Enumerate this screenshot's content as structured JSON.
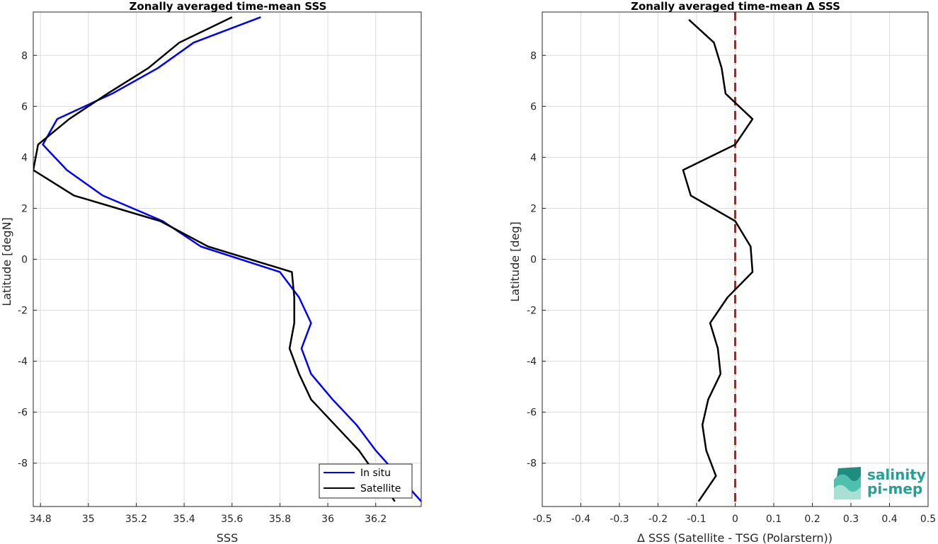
{
  "chart_data": [
    {
      "type": "line",
      "title": "Zonally averaged time-mean SSS",
      "xlabel": "SSS",
      "ylabel": "Latitude [degN]",
      "xlim": [
        34.77,
        36.39
      ],
      "ylim": [
        -9.7,
        9.7
      ],
      "xticks": [
        34.8,
        35,
        35.2,
        35.4,
        35.6,
        35.8,
        36,
        36.2
      ],
      "xtick_labels": [
        "34.8",
        "35",
        "35.2",
        "35.4",
        "35.6",
        "35.8",
        "36",
        "36.2"
      ],
      "yticks": [
        8,
        6,
        4,
        2,
        0,
        -2,
        -4,
        -6,
        -8
      ],
      "ytick_labels": [
        "8",
        "6",
        "4",
        "2",
        "0",
        "-2",
        "-4",
        "-6",
        "-8"
      ],
      "grid": true,
      "legend": "bottom-right",
      "series": [
        {
          "name": "In situ",
          "color": "#0000ff",
          "x": [
            35.72,
            35.44,
            35.29,
            35.1,
            34.87,
            34.81,
            34.91,
            35.06,
            35.31,
            35.47,
            35.8,
            35.88,
            35.93,
            35.89,
            35.93,
            36.02,
            36.12,
            36.2,
            36.39
          ],
          "y": [
            9.5,
            8.5,
            7.5,
            6.5,
            5.5,
            4.5,
            3.5,
            2.5,
            1.5,
            0.5,
            -0.5,
            -1.5,
            -2.5,
            -3.5,
            -4.5,
            -5.5,
            -6.5,
            -7.5,
            -9.5
          ]
        },
        {
          "name": "Satellite",
          "color": "#000000",
          "x": [
            35.6,
            35.38,
            35.25,
            35.08,
            34.92,
            34.79,
            34.77,
            34.94,
            35.3,
            35.5,
            35.85,
            35.86,
            35.86,
            35.84,
            35.88,
            35.93,
            36.03,
            36.13,
            36.28
          ],
          "y": [
            9.5,
            8.5,
            7.5,
            6.5,
            5.5,
            4.5,
            3.5,
            2.5,
            1.5,
            0.5,
            -0.5,
            -1.5,
            -2.5,
            -3.5,
            -4.5,
            -5.5,
            -6.5,
            -7.5,
            -9.5
          ]
        }
      ]
    },
    {
      "type": "line",
      "title": "Zonally averaged time-mean Δ SSS",
      "xlabel": "Δ SSS (Satellite - TSG (Polarstern))",
      "ylabel": "Latitude [deg]",
      "xlim": [
        -0.5,
        0.5
      ],
      "ylim": [
        -9.7,
        9.7
      ],
      "xticks": [
        -0.5,
        -0.4,
        -0.3,
        -0.2,
        -0.1,
        0,
        0.1,
        0.2,
        0.3,
        0.4,
        0.5
      ],
      "xtick_labels": [
        "-0.5",
        "-0.4",
        "-0.3",
        "-0.2",
        "-0.1",
        "0",
        "0.1",
        "0.2",
        "0.3",
        "0.4",
        "0.5"
      ],
      "yticks": [
        8,
        6,
        4,
        2,
        0,
        -2,
        -4,
        -6,
        -8
      ],
      "ytick_labels": [
        "8",
        "6",
        "4",
        "2",
        "0",
        "-2",
        "-4",
        "-6",
        "-8"
      ],
      "grid": true,
      "reference_line": {
        "x": 0,
        "color": "#ff0000",
        "style": "dashed"
      },
      "series": [
        {
          "color": "#000000",
          "x": [
            -0.12,
            -0.055,
            -0.035,
            -0.025,
            0.045,
            0.0,
            -0.135,
            -0.115,
            0.0,
            0.04,
            0.045,
            -0.02,
            -0.065,
            -0.045,
            -0.038,
            -0.07,
            -0.085,
            -0.075,
            -0.05,
            -0.095
          ],
          "y": [
            9.4,
            8.5,
            7.5,
            6.5,
            5.5,
            4.5,
            3.5,
            2.5,
            1.5,
            0.5,
            -0.5,
            -1.5,
            -2.5,
            -3.5,
            -4.5,
            -5.5,
            -6.5,
            -7.5,
            -8.5,
            -9.5
          ]
        }
      ]
    }
  ],
  "logo": {
    "line1": "salinity",
    "line2": "pi-mep",
    "color": "#20a294"
  }
}
